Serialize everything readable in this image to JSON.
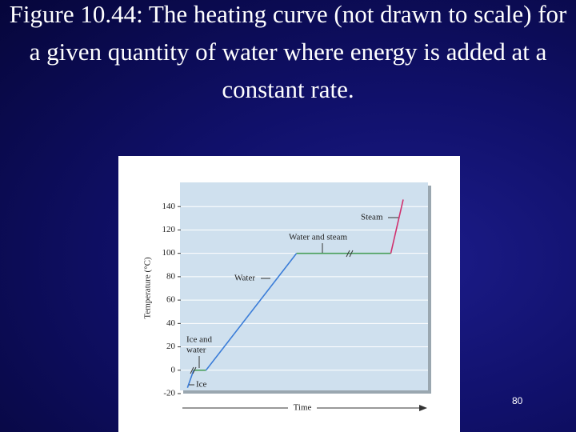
{
  "slide": {
    "title": "Figure 10.44:  The heating curve (not drawn to scale) for a given quantity of water where energy is added at a constant rate.",
    "page_number": "80"
  },
  "chart_data": {
    "type": "line",
    "y_label": "Temperature (°C)",
    "x_label": "Time",
    "x": [
      3,
      5.5,
      10.5,
      47,
      85,
      90
    ],
    "values": [
      -15,
      0,
      0,
      100,
      100,
      146
    ],
    "segment_colors": [
      "#3b7dd8",
      "#4aa05a",
      "#3b7dd8",
      "#4aa05a",
      "#d0306e"
    ],
    "xlim": [
      0,
      100
    ],
    "ylim": [
      -20,
      160
    ],
    "yticks": [
      -20,
      0,
      20,
      40,
      60,
      80,
      100,
      120,
      140
    ],
    "grid": true,
    "annotations": [
      "Steam",
      "Water and steam",
      "Water",
      "Ice and",
      "water",
      "Ice"
    ]
  }
}
